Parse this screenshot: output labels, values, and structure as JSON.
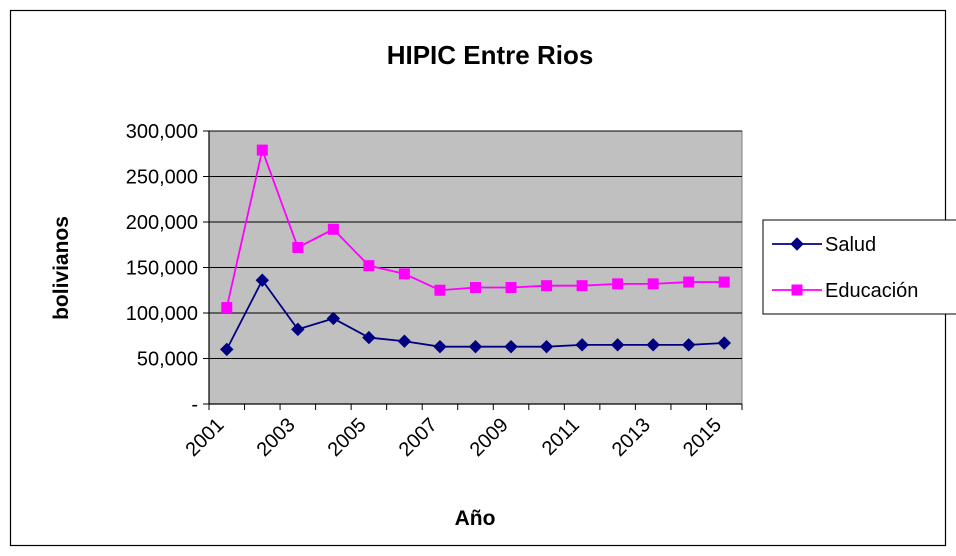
{
  "chart_data": {
    "type": "line",
    "title": "HIPIC Entre Rios",
    "xlabel": "Año",
    "ylabel": "bolivianos",
    "x": [
      2001,
      2002,
      2003,
      2004,
      2005,
      2006,
      2007,
      2008,
      2009,
      2010,
      2011,
      2012,
      2013,
      2014,
      2015
    ],
    "x_tick_labels": [
      "2001",
      "2003",
      "2005",
      "2007",
      "2009",
      "2011",
      "2013",
      "2015"
    ],
    "y_tick_labels": [
      "-",
      "50,000",
      "100,000",
      "150,000",
      "200,000",
      "250,000",
      "300,000"
    ],
    "ylim": [
      0,
      300000
    ],
    "grid": "horizontal",
    "legend_position": "right",
    "plot_background": "#c0c0c0",
    "series": [
      {
        "name": "Salud",
        "color": "#000080",
        "marker": "diamond",
        "values": [
          60000,
          136000,
          82000,
          94000,
          73000,
          69000,
          63000,
          63000,
          63000,
          63000,
          65000,
          65000,
          65000,
          65000,
          67000
        ]
      },
      {
        "name": "Educación",
        "color": "#ff00ff",
        "marker": "square",
        "values": [
          106000,
          279000,
          172000,
          192000,
          152000,
          143000,
          125000,
          128000,
          128000,
          130000,
          130000,
          132000,
          132000,
          134000,
          134000
        ]
      }
    ]
  }
}
